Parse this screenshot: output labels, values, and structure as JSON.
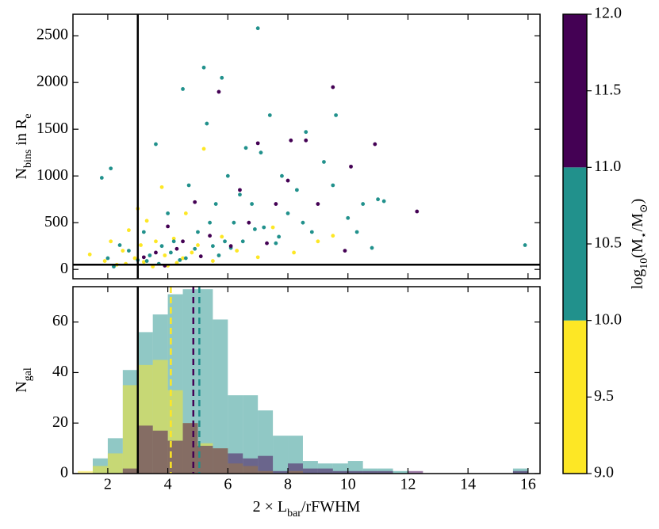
{
  "chart_data": [
    {
      "type": "scatter",
      "ylabel": [
        {
          "text": "N"
        },
        {
          "text": "bins",
          "sub": true
        },
        {
          "text": " in R"
        },
        {
          "text": "e",
          "sub": true
        }
      ],
      "xlim": [
        0.84,
        16.4
      ],
      "xticks": [
        2,
        4,
        6,
        8,
        10,
        12,
        14,
        16
      ],
      "ylim": [
        -100,
        2730
      ],
      "yticks": [
        0,
        500,
        1000,
        1500,
        2000,
        2500
      ],
      "vline": 3,
      "hline": 50,
      "series": [
        {
          "color": "#fde725",
          "x": [
            1.4,
            1.9,
            2.1,
            2.3,
            2.5,
            2.7,
            2.9,
            3.0,
            3.2,
            3.3,
            3.5,
            3.6,
            3.8,
            3.9,
            4.0,
            4.2,
            4.5,
            4.6,
            4.8,
            5.2,
            5.5,
            5.8,
            6.3,
            7.0,
            7.5,
            8.2,
            9.0,
            9.5,
            2.6,
            3.1,
            4.3,
            5.0
          ],
          "y": [
            160,
            90,
            300,
            50,
            200,
            420,
            120,
            650,
            80,
            520,
            30,
            300,
            880,
            150,
            40,
            330,
            120,
            600,
            180,
            1290,
            90,
            350,
            200,
            130,
            450,
            180,
            300,
            360,
            60,
            260,
            70,
            260
          ]
        },
        {
          "color": "#21918c",
          "x": [
            1.8,
            2.1,
            2.0,
            2.4,
            2.7,
            3.0,
            3.2,
            3.4,
            3.6,
            3.8,
            4.0,
            4.2,
            4.5,
            4.4,
            4.7,
            5.0,
            5.2,
            5.3,
            5.5,
            5.6,
            5.8,
            5.9,
            6.0,
            6.2,
            6.5,
            6.6,
            6.8,
            7.0,
            7.2,
            7.4,
            7.6,
            7.8,
            8.0,
            8.3,
            8.5,
            8.8,
            9.2,
            9.6,
            10.0,
            10.3,
            10.5,
            11.0,
            11.2,
            10.8,
            15.9,
            3.3,
            4.1,
            4.9,
            5.4,
            6.1,
            6.9,
            7.7,
            2.2,
            3.7,
            4.6,
            5.7,
            6.4,
            7.1,
            8.6,
            9.5
          ],
          "y": [
            980,
            1080,
            120,
            260,
            200,
            100,
            400,
            150,
            1340,
            250,
            600,
            300,
            1930,
            100,
            900,
            400,
            2160,
            1560,
            250,
            700,
            2050,
            300,
            1000,
            500,
            300,
            1300,
            700,
            2580,
            450,
            1650,
            280,
            1000,
            600,
            850,
            500,
            400,
            1150,
            1650,
            550,
            400,
            700,
            750,
            730,
            230,
            260,
            90,
            180,
            220,
            500,
            230,
            430,
            350,
            30,
            60,
            120,
            150,
            800,
            1250,
            1470,
            900
          ]
        },
        {
          "color": "#440154",
          "x": [
            3.2,
            3.6,
            4.0,
            4.5,
            4.9,
            5.1,
            5.7,
            6.4,
            6.7,
            7.0,
            7.3,
            7.6,
            8.1,
            8.6,
            9.0,
            9.5,
            9.9,
            10.1,
            10.9,
            12.3,
            3.9,
            4.3,
            5.4,
            6.1,
            8.0
          ],
          "y": [
            130,
            180,
            460,
            300,
            720,
            140,
            1900,
            850,
            500,
            1350,
            280,
            700,
            1380,
            1380,
            700,
            1950,
            200,
            1100,
            1340,
            620,
            40,
            220,
            360,
            250,
            950
          ]
        }
      ]
    },
    {
      "type": "histogram",
      "xlabel": [
        {
          "text": "2 × L"
        },
        {
          "text": "bar",
          "sub": true
        },
        {
          "text": "/rFWHM"
        }
      ],
      "ylabel": [
        {
          "text": "N"
        },
        {
          "text": "gal",
          "sub": true
        }
      ],
      "xlim": [
        0.84,
        16.4
      ],
      "xticks": [
        2,
        4,
        6,
        8,
        10,
        12,
        14,
        16
      ],
      "ylim": [
        0,
        74
      ],
      "yticks": [
        0,
        20,
        40,
        60
      ],
      "vline": 3,
      "bins": [
        1.0,
        1.5,
        2.0,
        2.5,
        3.0,
        3.5,
        4.0,
        4.5,
        5.0,
        5.5,
        6.0,
        6.5,
        7.0,
        7.5,
        8.0,
        8.5,
        9.0,
        9.5,
        10.0,
        10.5,
        11.0,
        11.5,
        12.0,
        12.5,
        13.0,
        13.5,
        14.0,
        14.5,
        15.0,
        15.5,
        16.0
      ],
      "series": [
        {
          "color": "#21918c",
          "median": 5.05,
          "values": [
            0,
            6,
            14,
            41,
            56,
            63,
            71,
            73,
            73,
            61,
            31,
            31,
            25,
            15,
            15,
            5,
            4,
            4,
            5,
            2,
            2,
            1,
            0,
            0,
            0,
            0,
            0,
            0,
            0,
            2
          ]
        },
        {
          "color": "#fde725",
          "median": 4.1,
          "values": [
            1,
            3,
            8,
            35,
            43,
            45,
            33,
            20,
            12,
            10,
            4,
            3,
            1,
            0,
            1,
            0,
            0,
            0,
            0,
            0,
            0,
            0,
            0,
            0,
            0,
            0,
            0,
            0,
            0,
            0
          ]
        },
        {
          "color": "#440154",
          "median": 4.85,
          "values": [
            0,
            0,
            0,
            2,
            19,
            17,
            13,
            20,
            11,
            10,
            8,
            6,
            7,
            1,
            4,
            2,
            2,
            1,
            1,
            1,
            1,
            0,
            1,
            0,
            0,
            0,
            0,
            0,
            0,
            1
          ]
        }
      ]
    },
    {
      "type": "colorbar",
      "label": [
        {
          "text": "log"
        },
        {
          "text": "10",
          "sub": true
        },
        {
          "text": "(M"
        },
        {
          "text": "⋆",
          "sub": true
        },
        {
          "text": "/M"
        },
        {
          "text": "⊙",
          "sub": true
        },
        {
          "text": ")"
        }
      ],
      "ylim": [
        9,
        12
      ],
      "yticks": [
        {
          "value": 9,
          "label": "9.0"
        },
        {
          "value": 9.5,
          "label": "9.5"
        },
        {
          "value": 10,
          "label": "10.0"
        },
        {
          "value": 10.5,
          "label": "10.5"
        },
        {
          "value": 11,
          "label": "11.0"
        },
        {
          "value": 11.5,
          "label": "11.5"
        },
        {
          "value": 12,
          "label": "12.0"
        }
      ],
      "boundaries": [
        9,
        10,
        11,
        12
      ],
      "colors": [
        "#fde725",
        "#21918c",
        "#440154"
      ]
    }
  ]
}
